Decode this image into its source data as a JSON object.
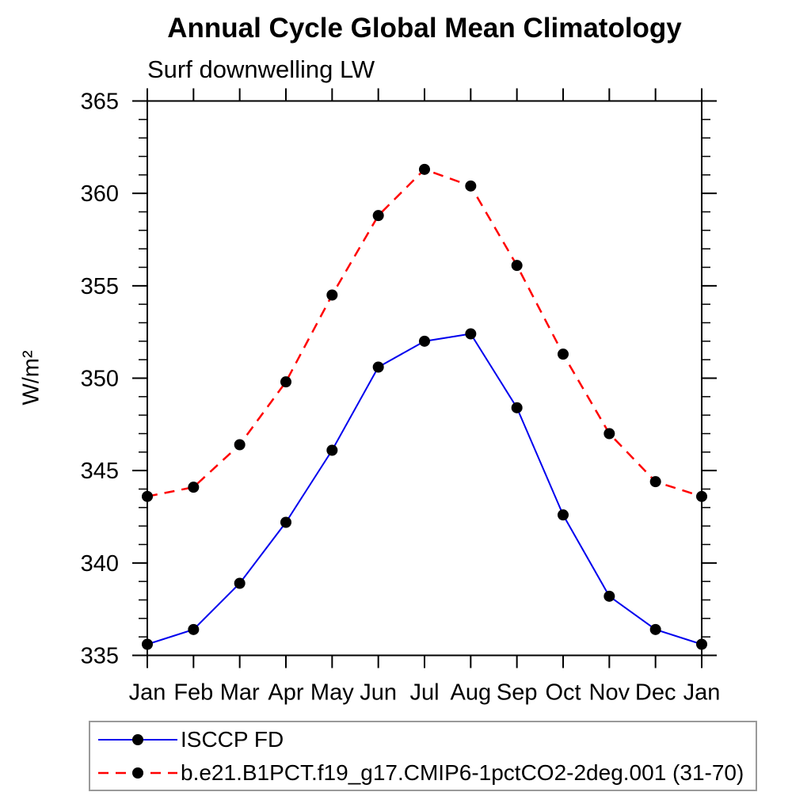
{
  "title": "Annual Cycle Global Mean Climatology",
  "subtitle": "Surf downwelling LW",
  "ylabel": "W/m²",
  "chart_data": {
    "type": "line",
    "categories": [
      "Jan",
      "Feb",
      "Mar",
      "Apr",
      "May",
      "Jun",
      "Jul",
      "Aug",
      "Sep",
      "Oct",
      "Nov",
      "Dec",
      "Jan"
    ],
    "series": [
      {
        "name": "ISCCP FD",
        "color": "#0000ee",
        "style": "solid",
        "marker": "circle",
        "values": [
          335.6,
          336.4,
          338.9,
          342.2,
          346.1,
          350.6,
          352.0,
          352.4,
          348.4,
          342.6,
          338.2,
          336.4,
          335.6
        ]
      },
      {
        "name": "b.e21.B1PCT.f19_g17.CMIP6-1pctCO2-2deg.001 (31-70)",
        "color": "#ff0000",
        "style": "dashed",
        "marker": "circle",
        "values": [
          343.6,
          344.1,
          346.4,
          349.8,
          354.5,
          358.8,
          361.3,
          360.4,
          356.1,
          351.3,
          347.0,
          344.4,
          343.6
        ]
      }
    ],
    "ylim": [
      335,
      365
    ],
    "yticks": [
      335,
      340,
      345,
      350,
      355,
      360,
      365
    ],
    "minor_tick_step": 1,
    "grid": false,
    "legend_position": "bottom-left-box",
    "axis_color": "#000000",
    "marker_color": "#000000"
  }
}
